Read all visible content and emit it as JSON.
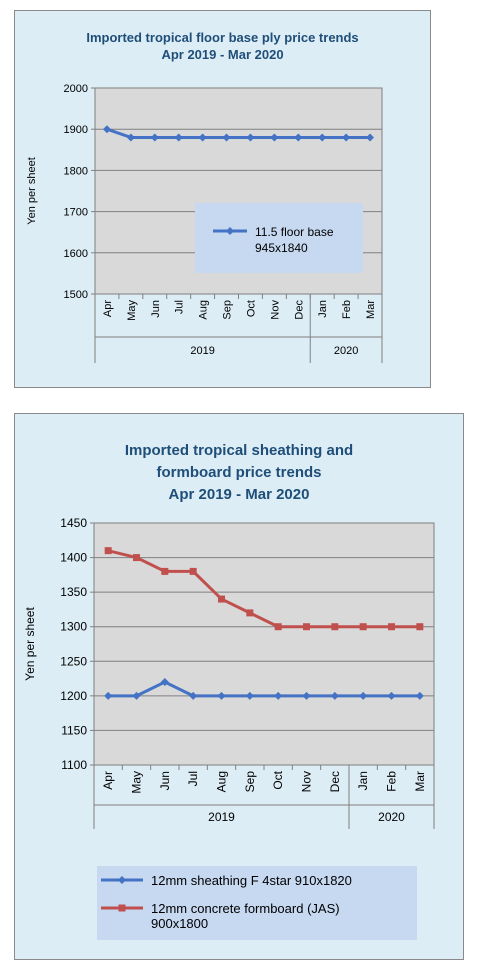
{
  "colors": {
    "panel_bg": "#dcedf5",
    "plot_bg": "#d9d9d9",
    "legend_bg": "#c6d9f1",
    "title_color": "#1f4e79",
    "series_blue": "#4472c4",
    "series_red": "#c0504d"
  },
  "chart_data": [
    {
      "type": "line",
      "title_lines": [
        "Imported tropical floor base ply price trends",
        "Apr 2019 - Mar 2020"
      ],
      "ylabel": "Yen per sheet",
      "ylim": [
        1500,
        2000
      ],
      "yticks": [
        1500,
        1600,
        1700,
        1800,
        1900,
        2000
      ],
      "ytick_labels": [
        "1500",
        "1600",
        "1700",
        "1800",
        "1900",
        "2000"
      ],
      "categories": [
        "Apr",
        "May",
        "Jun",
        "Jul",
        "Aug",
        "Sep",
        "Oct",
        "Nov",
        "Dec",
        "Jan",
        "Feb",
        "Mar"
      ],
      "year_groups": [
        {
          "label": "2019",
          "count": 9
        },
        {
          "label": "2020",
          "count": 3
        }
      ],
      "grid": true,
      "legend_position": "lower-right",
      "series": [
        {
          "name": "11.5 floor base 945x1840",
          "legend_lines": [
            "11.5 floor base",
            "945x1840"
          ],
          "color": "#4472c4",
          "marker": "diamond",
          "values": [
            1900,
            1880,
            1880,
            1880,
            1880,
            1880,
            1880,
            1880,
            1880,
            1880,
            1880,
            1880
          ]
        }
      ]
    },
    {
      "type": "line",
      "title_lines": [
        "Imported tropical sheathing and",
        "formboard price trends",
        "Apr 2019 -  Mar 2020"
      ],
      "ylabel": "Yen per sheet",
      "ylim": [
        1100,
        1450
      ],
      "yticks": [
        1100,
        1150,
        1200,
        1250,
        1300,
        1350,
        1400,
        1450
      ],
      "ytick_labels": [
        "1100",
        "1150",
        "1200",
        "1250",
        "1300",
        "1350",
        "1400",
        "1450"
      ],
      "categories": [
        "Apr",
        "May",
        "Jun",
        "Jul",
        "Aug",
        "Sep",
        "Oct",
        "Nov",
        "Dec",
        "Jan",
        "Feb",
        "Mar"
      ],
      "year_groups": [
        {
          "label": "2019",
          "count": 9
        },
        {
          "label": "2020",
          "count": 3
        }
      ],
      "grid": true,
      "legend_position": "bottom",
      "series": [
        {
          "name": "12mm sheathing F 4star 910x1820",
          "legend_lines": [
            "12mm sheathing F 4star 910x1820"
          ],
          "color": "#4472c4",
          "marker": "diamond",
          "values": [
            1200,
            1200,
            1220,
            1200,
            1200,
            1200,
            1200,
            1200,
            1200,
            1200,
            1200,
            1200
          ]
        },
        {
          "name": "12mm concrete formboard (JAS) 900x1800",
          "legend_lines": [
            "12mm concrete formboard (JAS)",
            "900x1800"
          ],
          "color": "#c0504d",
          "marker": "square",
          "values": [
            1410,
            1400,
            1380,
            1380,
            1340,
            1320,
            1300,
            1300,
            1300,
            1300,
            1300,
            1300
          ]
        }
      ]
    }
  ]
}
